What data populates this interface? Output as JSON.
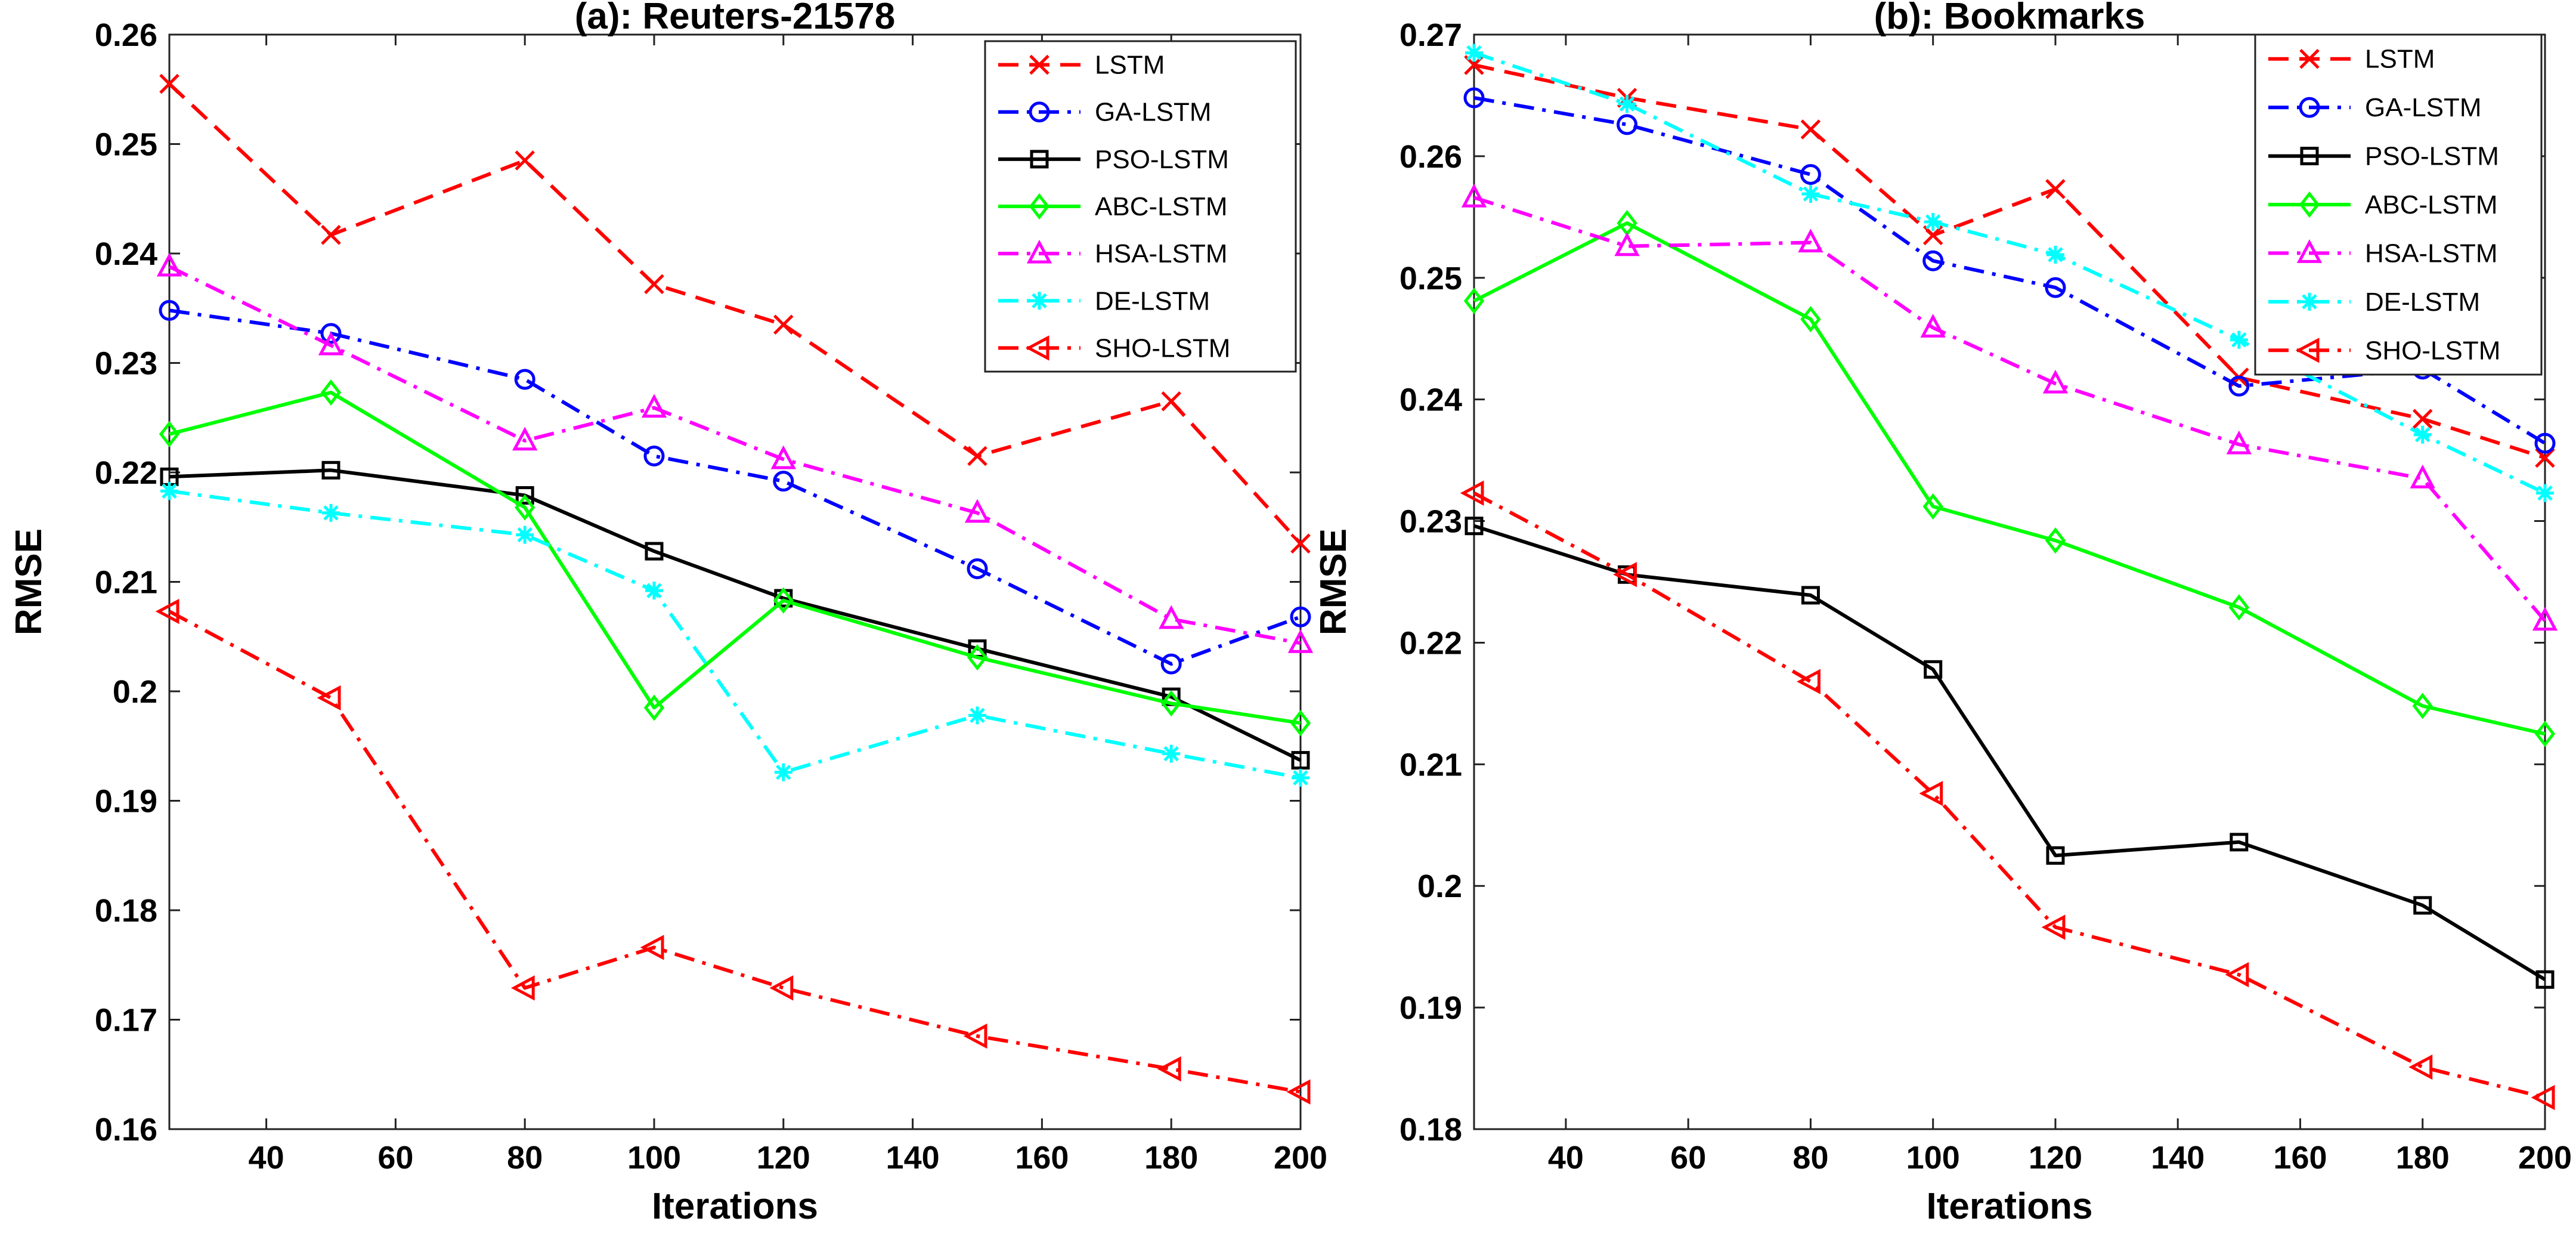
{
  "chart_data": [
    {
      "type": "line",
      "title": "(a): Reuters-21578",
      "xlabel": "Iterations",
      "ylabel": "RMSE",
      "xlim": [
        25,
        200
      ],
      "ylim": [
        0.16,
        0.26
      ],
      "xticks": [
        40,
        60,
        80,
        100,
        120,
        140,
        160,
        180,
        200
      ],
      "yticks": [
        0.16,
        0.17,
        0.18,
        0.19,
        0.2,
        0.21,
        0.22,
        0.23,
        0.24,
        0.25,
        0.26
      ],
      "ytick_labels": [
        "0.16",
        "0.17",
        "0.18",
        "0.19",
        "0.2",
        "0.21",
        "0.22",
        "0.23",
        "0.24",
        "0.25",
        "0.26"
      ],
      "grid": false,
      "legend": "top-right",
      "x": [
        25,
        50,
        80,
        100,
        120,
        150,
        180,
        200
      ],
      "series": [
        {
          "name": "LSTM",
          "color": "#ff0000",
          "dash": "dashed",
          "marker": "x",
          "values": [
            0.2555,
            0.2417,
            0.2485,
            0.2372,
            0.2335,
            0.2215,
            0.2265,
            0.2135
          ]
        },
        {
          "name": "GA-LSTM",
          "color": "#0000ff",
          "dash": "dashdot",
          "marker": "circle",
          "values": [
            0.2348,
            0.2327,
            0.2285,
            0.2215,
            0.2192,
            0.2112,
            0.2025,
            0.2068
          ]
        },
        {
          "name": "PSO-LSTM",
          "color": "#000000",
          "dash": "solid",
          "marker": "square",
          "values": [
            0.2196,
            0.2202,
            0.2179,
            0.2128,
            0.2085,
            0.2039,
            0.1995,
            0.1937
          ]
        },
        {
          "name": "ABC-LSTM",
          "color": "#00ff00",
          "dash": "solid",
          "marker": "diamond",
          "values": [
            0.2235,
            0.2273,
            0.2168,
            0.1985,
            0.2083,
            0.2031,
            0.1989,
            0.1971
          ]
        },
        {
          "name": "HSA-LSTM",
          "color": "#ff00ff",
          "dash": "dashdot",
          "marker": "triangle",
          "values": [
            0.2388,
            0.2316,
            0.2229,
            0.2259,
            0.2212,
            0.2163,
            0.2066,
            0.2044
          ]
        },
        {
          "name": "DE-LSTM",
          "color": "#00ffff",
          "dash": "dashdot",
          "marker": "asterisk",
          "values": [
            0.2183,
            0.2163,
            0.2143,
            0.2092,
            0.1926,
            0.1978,
            0.1943,
            0.1921
          ]
        },
        {
          "name": "SHO-LSTM",
          "color": "#ff0000",
          "dash": "dashdot",
          "marker": "triangle-left",
          "values": [
            0.2073,
            0.1994,
            0.1729,
            0.1766,
            0.1729,
            0.1685,
            0.1655,
            0.1634
          ]
        }
      ]
    },
    {
      "type": "line",
      "title": "(b): Bookmarks",
      "xlabel": "Iterations",
      "ylabel": "RMSE",
      "xlim": [
        25,
        200
      ],
      "ylim": [
        0.18,
        0.27
      ],
      "xticks": [
        40,
        60,
        80,
        100,
        120,
        140,
        160,
        180,
        200
      ],
      "yticks": [
        0.18,
        0.19,
        0.2,
        0.21,
        0.22,
        0.23,
        0.24,
        0.25,
        0.26,
        0.27
      ],
      "ytick_labels": [
        "0.18",
        "0.19",
        "0.2",
        "0.21",
        "0.22",
        "0.23",
        "0.24",
        "0.25",
        "0.26",
        "0.27"
      ],
      "grid": false,
      "legend": "top-right",
      "x": [
        25,
        50,
        80,
        100,
        120,
        150,
        180,
        200
      ],
      "series": [
        {
          "name": "LSTM",
          "color": "#ff0000",
          "dash": "dashed",
          "marker": "x",
          "values": [
            0.2675,
            0.2648,
            0.2622,
            0.2535,
            0.2573,
            0.2418,
            0.2384,
            0.2352
          ]
        },
        {
          "name": "GA-LSTM",
          "color": "#0000ff",
          "dash": "dashdot",
          "marker": "circle",
          "values": [
            0.2648,
            0.2626,
            0.2585,
            0.2514,
            0.2492,
            0.2411,
            0.2425,
            0.2364
          ]
        },
        {
          "name": "PSO-LSTM",
          "color": "#000000",
          "dash": "solid",
          "marker": "square",
          "values": [
            0.2296,
            0.2256,
            0.2239,
            0.2178,
            0.2025,
            0.2036,
            0.1984,
            0.1923
          ]
        },
        {
          "name": "ABC-LSTM",
          "color": "#00ff00",
          "dash": "solid",
          "marker": "diamond",
          "values": [
            0.2481,
            0.2545,
            0.2466,
            0.2312,
            0.2284,
            0.2229,
            0.2148,
            0.2125
          ]
        },
        {
          "name": "HSA-LSTM",
          "color": "#ff00ff",
          "dash": "dashdot",
          "marker": "triangle",
          "values": [
            0.2566,
            0.2526,
            0.2529,
            0.2459,
            0.2413,
            0.2363,
            0.2335,
            0.2218
          ]
        },
        {
          "name": "DE-LSTM",
          "color": "#00ffff",
          "dash": "dashdot",
          "marker": "asterisk",
          "values": [
            0.2685,
            0.2643,
            0.2569,
            0.2546,
            0.2519,
            0.2449,
            0.2371,
            0.2323
          ]
        },
        {
          "name": "SHO-LSTM",
          "color": "#ff0000",
          "dash": "dashdot",
          "marker": "triangle-left",
          "values": [
            0.2323,
            0.2256,
            0.2168,
            0.2076,
            0.1966,
            0.1927,
            0.1851,
            0.1826
          ]
        }
      ]
    }
  ]
}
